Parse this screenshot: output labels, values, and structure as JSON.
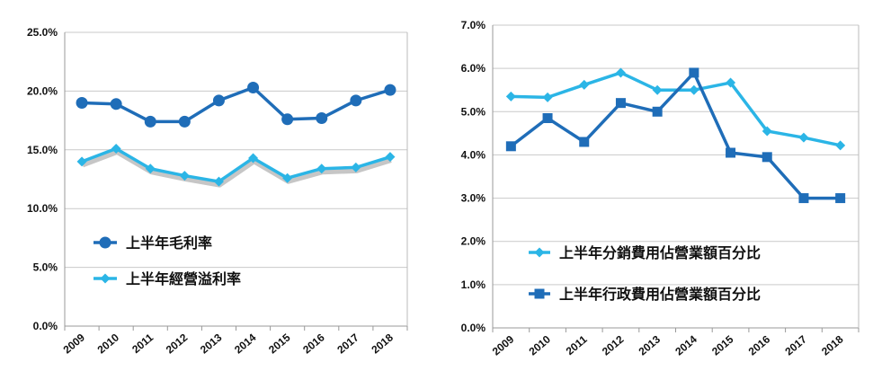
{
  "chart_data": [
    {
      "type": "line",
      "title": "",
      "xlabel": "",
      "ylabel": "",
      "categories": [
        "2009",
        "2010",
        "2011",
        "2012",
        "2013",
        "2014",
        "2015",
        "2016",
        "2017",
        "2018"
      ],
      "ylim": [
        0,
        25
      ],
      "yticks": [
        "0.0%",
        "5.0%",
        "10.0%",
        "15.0%",
        "20.0%",
        "25.0%"
      ],
      "grid": "horizontal",
      "legend_position": "lower-left",
      "series": [
        {
          "name": "上半年毛利率",
          "color": "#1f6db8",
          "marker": "circle",
          "values": [
            19.0,
            18.9,
            17.4,
            17.4,
            19.2,
            20.3,
            17.6,
            17.7,
            19.2,
            20.1
          ]
        },
        {
          "name": "上半年經營溢利率",
          "color": "#2bb5e6",
          "marker": "diamond",
          "values": [
            14.0,
            15.1,
            13.4,
            12.8,
            12.3,
            14.3,
            12.6,
            13.4,
            13.5,
            14.4
          ]
        }
      ]
    },
    {
      "type": "line",
      "title": "",
      "xlabel": "",
      "ylabel": "",
      "categories": [
        "2009",
        "2010",
        "2011",
        "2012",
        "2013",
        "2014",
        "2015",
        "2016",
        "2017",
        "2018"
      ],
      "ylim": [
        0,
        7
      ],
      "yticks": [
        "0.0%",
        "1.0%",
        "2.0%",
        "3.0%",
        "4.0%",
        "5.0%",
        "6.0%",
        "7.0%"
      ],
      "grid": "horizontal",
      "legend_position": "lower-center",
      "series": [
        {
          "name": "上半年分銷費用佔營業額百分比",
          "color": "#2bb5e6",
          "marker": "diamond",
          "values": [
            5.35,
            5.33,
            5.62,
            5.9,
            5.5,
            5.5,
            5.67,
            4.55,
            4.4,
            4.22
          ]
        },
        {
          "name": "上半年行政費用佔營業額百分比",
          "color": "#1f6db8",
          "marker": "square",
          "values": [
            4.2,
            4.85,
            4.3,
            5.2,
            5.0,
            5.9,
            4.05,
            3.95,
            3.0,
            3.0
          ]
        }
      ]
    }
  ]
}
